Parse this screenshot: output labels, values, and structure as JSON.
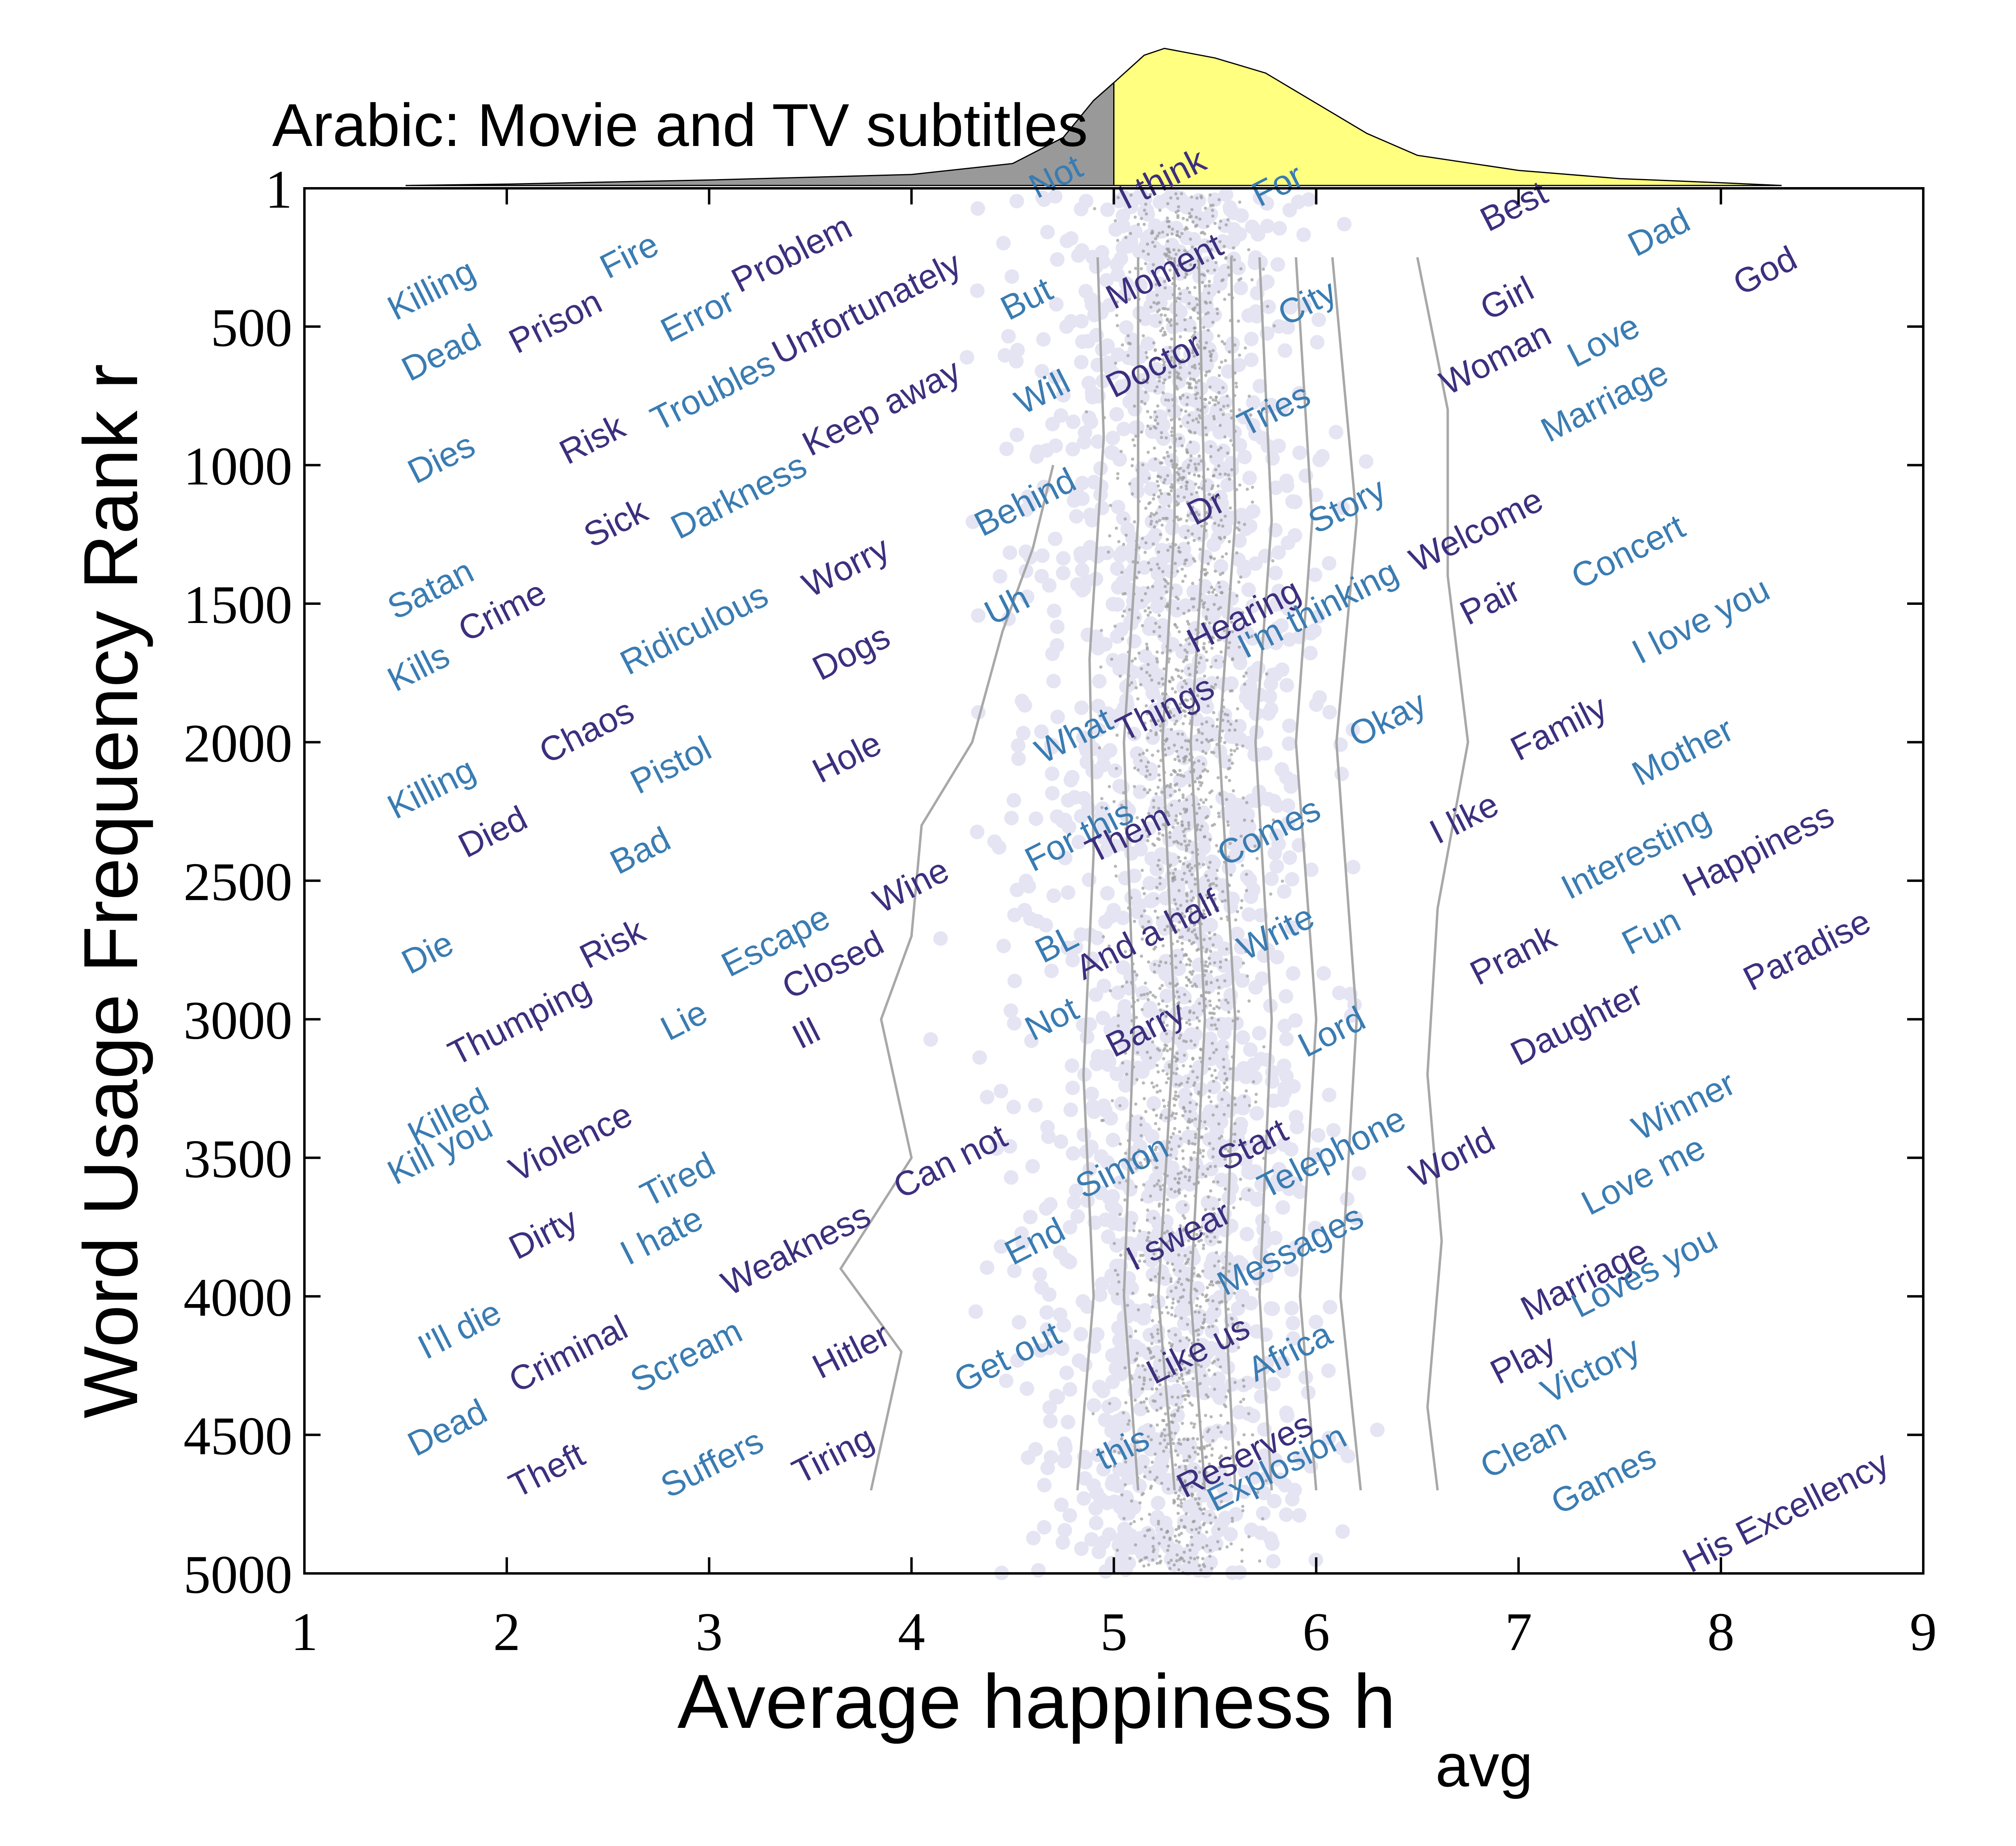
{
  "chart_data": {
    "type": "scatter",
    "title": "Arabic: Movie and TV subtitles",
    "xlabel": "Average happiness h",
    "xlabel_subscript": "avg",
    "ylabel": "Word Usage Frequency Rank r",
    "xlim": [
      1,
      9
    ],
    "ylim": [
      1,
      5000
    ],
    "y_inverted": true,
    "xticks": [
      1,
      2,
      3,
      4,
      5,
      6,
      7,
      8,
      9
    ],
    "yticks": [
      1,
      500,
      1000,
      1500,
      2000,
      2500,
      3000,
      3500,
      4000,
      4500,
      5000
    ],
    "colors": {
      "words_dark": "#3d2f7e",
      "words_light": "#3a7cb2",
      "points": "#e4e4f3",
      "point_core": "#9a9a9a",
      "contours": "#a8a8a8",
      "dist_below": "#999999",
      "dist_above": "#ffff80"
    },
    "words": [
      {
        "text": "Not",
        "x": 4.62,
        "y": 40,
        "tone": "light"
      },
      {
        "text": "I think",
        "x": 5.06,
        "y": 80,
        "tone": "dark"
      },
      {
        "text": "For",
        "x": 5.72,
        "y": 70,
        "tone": "light"
      },
      {
        "text": "Best",
        "x": 6.85,
        "y": 160,
        "tone": "dark"
      },
      {
        "text": "Dad",
        "x": 7.58,
        "y": 250,
        "tone": "light"
      },
      {
        "text": "God",
        "x": 8.1,
        "y": 390,
        "tone": "dark"
      },
      {
        "text": "Killing",
        "x": 1.45,
        "y": 480,
        "tone": "light"
      },
      {
        "text": "Fire",
        "x": 2.5,
        "y": 330,
        "tone": "light"
      },
      {
        "text": "Problem",
        "x": 3.15,
        "y": 380,
        "tone": "dark"
      },
      {
        "text": "Error",
        "x": 2.8,
        "y": 560,
        "tone": "light"
      },
      {
        "text": "Prison",
        "x": 2.05,
        "y": 600,
        "tone": "dark"
      },
      {
        "text": "Dead",
        "x": 1.52,
        "y": 700,
        "tone": "light"
      },
      {
        "text": "But",
        "x": 4.48,
        "y": 480,
        "tone": "light"
      },
      {
        "text": "Moment",
        "x": 5.0,
        "y": 440,
        "tone": "dark"
      },
      {
        "text": "City",
        "x": 5.85,
        "y": 500,
        "tone": "light"
      },
      {
        "text": "Girl",
        "x": 6.85,
        "y": 480,
        "tone": "dark"
      },
      {
        "text": "Unfortunately",
        "x": 3.35,
        "y": 640,
        "tone": "dark"
      },
      {
        "text": "Keep away",
        "x": 3.5,
        "y": 970,
        "tone": "dark"
      },
      {
        "text": "Will",
        "x": 4.55,
        "y": 820,
        "tone": "light"
      },
      {
        "text": "Doctor",
        "x": 5.0,
        "y": 760,
        "tone": "dark"
      },
      {
        "text": "Tries",
        "x": 5.65,
        "y": 900,
        "tone": "light"
      },
      {
        "text": "Woman",
        "x": 6.65,
        "y": 750,
        "tone": "dark"
      },
      {
        "text": "Love",
        "x": 7.28,
        "y": 650,
        "tone": "light"
      },
      {
        "text": "Marriage",
        "x": 7.15,
        "y": 920,
        "tone": "light"
      },
      {
        "text": "Troubles",
        "x": 2.75,
        "y": 880,
        "tone": "light"
      },
      {
        "text": "Risk",
        "x": 2.3,
        "y": 1000,
        "tone": "dark"
      },
      {
        "text": "Dies",
        "x": 1.55,
        "y": 1070,
        "tone": "light"
      },
      {
        "text": "Darkness",
        "x": 2.85,
        "y": 1270,
        "tone": "light"
      },
      {
        "text": "Sick",
        "x": 2.42,
        "y": 1300,
        "tone": "dark"
      },
      {
        "text": "Behind",
        "x": 4.35,
        "y": 1260,
        "tone": "light"
      },
      {
        "text": "Dr",
        "x": 5.4,
        "y": 1220,
        "tone": "dark"
      },
      {
        "text": "Story",
        "x": 6.0,
        "y": 1250,
        "tone": "light"
      },
      {
        "text": "Welcome",
        "x": 6.5,
        "y": 1390,
        "tone": "dark"
      },
      {
        "text": "Concert",
        "x": 7.3,
        "y": 1450,
        "tone": "light"
      },
      {
        "text": "Worry",
        "x": 3.5,
        "y": 1480,
        "tone": "dark"
      },
      {
        "text": "Satan",
        "x": 1.45,
        "y": 1560,
        "tone": "light"
      },
      {
        "text": "Crime",
        "x": 1.8,
        "y": 1640,
        "tone": "dark"
      },
      {
        "text": "Kills",
        "x": 1.45,
        "y": 1820,
        "tone": "light"
      },
      {
        "text": "Ridiculous",
        "x": 2.6,
        "y": 1760,
        "tone": "light"
      },
      {
        "text": "Uh",
        "x": 4.4,
        "y": 1580,
        "tone": "light"
      },
      {
        "text": "Hearing",
        "x": 5.4,
        "y": 1680,
        "tone": "dark"
      },
      {
        "text": "I'm thinking",
        "x": 5.65,
        "y": 1700,
        "tone": "light"
      },
      {
        "text": "Pair",
        "x": 6.75,
        "y": 1580,
        "tone": "dark"
      },
      {
        "text": "I love you",
        "x": 7.6,
        "y": 1720,
        "tone": "light"
      },
      {
        "text": "Dogs",
        "x": 3.55,
        "y": 1780,
        "tone": "dark"
      },
      {
        "text": "What",
        "x": 4.65,
        "y": 2080,
        "tone": "light"
      },
      {
        "text": "Things",
        "x": 5.05,
        "y": 2000,
        "tone": "dark"
      },
      {
        "text": "Okay",
        "x": 6.2,
        "y": 2020,
        "tone": "light"
      },
      {
        "text": "Family",
        "x": 7.0,
        "y": 2070,
        "tone": "dark"
      },
      {
        "text": "Killing",
        "x": 1.45,
        "y": 2280,
        "tone": "light"
      },
      {
        "text": "Chaos",
        "x": 2.2,
        "y": 2080,
        "tone": "dark"
      },
      {
        "text": "Pistol",
        "x": 2.65,
        "y": 2190,
        "tone": "light"
      },
      {
        "text": "Hole",
        "x": 3.55,
        "y": 2150,
        "tone": "dark"
      },
      {
        "text": "Mother",
        "x": 7.6,
        "y": 2160,
        "tone": "light"
      },
      {
        "text": "Died",
        "x": 1.8,
        "y": 2420,
        "tone": "dark"
      },
      {
        "text": "For this",
        "x": 4.6,
        "y": 2470,
        "tone": "light"
      },
      {
        "text": "Them",
        "x": 4.9,
        "y": 2440,
        "tone": "dark"
      },
      {
        "text": "Comes",
        "x": 5.55,
        "y": 2450,
        "tone": "light"
      },
      {
        "text": "I like",
        "x": 6.6,
        "y": 2370,
        "tone": "dark"
      },
      {
        "text": "Interesting",
        "x": 7.25,
        "y": 2570,
        "tone": "light"
      },
      {
        "text": "Happiness",
        "x": 7.85,
        "y": 2560,
        "tone": "dark"
      },
      {
        "text": "Bad",
        "x": 2.55,
        "y": 2480,
        "tone": "light"
      },
      {
        "text": "Wine",
        "x": 3.85,
        "y": 2620,
        "tone": "dark"
      },
      {
        "text": "And a half",
        "x": 4.85,
        "y": 2860,
        "tone": "dark"
      },
      {
        "text": "Write",
        "x": 5.65,
        "y": 2790,
        "tone": "light"
      },
      {
        "text": "Fun",
        "x": 7.55,
        "y": 2770,
        "tone": "light"
      },
      {
        "text": "Prank",
        "x": 6.8,
        "y": 2880,
        "tone": "dark"
      },
      {
        "text": "Paradise",
        "x": 8.15,
        "y": 2900,
        "tone": "dark"
      },
      {
        "text": "Die",
        "x": 1.52,
        "y": 2840,
        "tone": "light"
      },
      {
        "text": "Risk",
        "x": 2.4,
        "y": 2820,
        "tone": "dark"
      },
      {
        "text": "Escape",
        "x": 3.1,
        "y": 2850,
        "tone": "light"
      },
      {
        "text": "Closed",
        "x": 3.4,
        "y": 2930,
        "tone": "dark"
      },
      {
        "text": "BL",
        "x": 4.65,
        "y": 2800,
        "tone": "light"
      },
      {
        "text": "Thumping",
        "x": 1.75,
        "y": 3170,
        "tone": "dark"
      },
      {
        "text": "Lie",
        "x": 2.8,
        "y": 3080,
        "tone": "light"
      },
      {
        "text": "Ill",
        "x": 3.45,
        "y": 3110,
        "tone": "dark"
      },
      {
        "text": "Not",
        "x": 4.6,
        "y": 3080,
        "tone": "light"
      },
      {
        "text": "Barry",
        "x": 5.0,
        "y": 3140,
        "tone": "dark"
      },
      {
        "text": "Lord",
        "x": 5.95,
        "y": 3140,
        "tone": "light"
      },
      {
        "text": "Daughter",
        "x": 7.0,
        "y": 3170,
        "tone": "dark"
      },
      {
        "text": "Killed",
        "x": 1.55,
        "y": 3460,
        "tone": "light"
      },
      {
        "text": "Kill you",
        "x": 1.45,
        "y": 3600,
        "tone": "light"
      },
      {
        "text": "Violence",
        "x": 2.05,
        "y": 3590,
        "tone": "dark"
      },
      {
        "text": "Winner",
        "x": 7.6,
        "y": 3440,
        "tone": "light"
      },
      {
        "text": "Can not",
        "x": 3.95,
        "y": 3650,
        "tone": "dark"
      },
      {
        "text": "Simon",
        "x": 4.85,
        "y": 3650,
        "tone": "light"
      },
      {
        "text": "Start",
        "x": 5.55,
        "y": 3550,
        "tone": "dark"
      },
      {
        "text": "Telephone",
        "x": 5.75,
        "y": 3650,
        "tone": "light"
      },
      {
        "text": "World",
        "x": 6.5,
        "y": 3610,
        "tone": "dark"
      },
      {
        "text": "Love me",
        "x": 7.35,
        "y": 3710,
        "tone": "light"
      },
      {
        "text": "Tired",
        "x": 2.7,
        "y": 3680,
        "tone": "light"
      },
      {
        "text": "Dirty",
        "x": 2.05,
        "y": 3870,
        "tone": "dark"
      },
      {
        "text": "I hate",
        "x": 2.6,
        "y": 3890,
        "tone": "light"
      },
      {
        "text": "Weakness",
        "x": 3.1,
        "y": 4000,
        "tone": "dark"
      },
      {
        "text": "End",
        "x": 4.5,
        "y": 3890,
        "tone": "light"
      },
      {
        "text": "I swear",
        "x": 5.1,
        "y": 3910,
        "tone": "dark"
      },
      {
        "text": "Messages",
        "x": 5.55,
        "y": 4000,
        "tone": "light"
      },
      {
        "text": "Marriage",
        "x": 7.05,
        "y": 4090,
        "tone": "dark"
      },
      {
        "text": "Loves you",
        "x": 7.3,
        "y": 4080,
        "tone": "light"
      },
      {
        "text": "I'll die",
        "x": 1.6,
        "y": 4230,
        "tone": "light"
      },
      {
        "text": "Criminal",
        "x": 2.05,
        "y": 4350,
        "tone": "dark"
      },
      {
        "text": "Scream",
        "x": 2.65,
        "y": 4350,
        "tone": "light"
      },
      {
        "text": "Hitler",
        "x": 3.55,
        "y": 4300,
        "tone": "dark"
      },
      {
        "text": "Get out",
        "x": 4.25,
        "y": 4350,
        "tone": "light"
      },
      {
        "text": "Like us",
        "x": 5.2,
        "y": 4320,
        "tone": "dark"
      },
      {
        "text": "Africa",
        "x": 5.7,
        "y": 4310,
        "tone": "light"
      },
      {
        "text": "Play",
        "x": 6.9,
        "y": 4320,
        "tone": "dark"
      },
      {
        "text": "Victory",
        "x": 7.15,
        "y": 4390,
        "tone": "light"
      },
      {
        "text": "Dead",
        "x": 1.55,
        "y": 4580,
        "tone": "light"
      },
      {
        "text": "Theft",
        "x": 2.05,
        "y": 4730,
        "tone": "dark"
      },
      {
        "text": "Suffers",
        "x": 2.8,
        "y": 4730,
        "tone": "light"
      },
      {
        "text": "Tiring",
        "x": 3.45,
        "y": 4680,
        "tone": "dark"
      },
      {
        "text": "this",
        "x": 4.95,
        "y": 4630,
        "tone": "light"
      },
      {
        "text": "Reserves",
        "x": 5.35,
        "y": 4730,
        "tone": "dark"
      },
      {
        "text": "Explosion",
        "x": 5.5,
        "y": 4780,
        "tone": "light"
      },
      {
        "text": "Clean",
        "x": 6.85,
        "y": 4660,
        "tone": "light"
      },
      {
        "text": "Games",
        "x": 7.2,
        "y": 4790,
        "tone": "light"
      },
      {
        "text": "His Excellency",
        "x": 7.85,
        "y": 5000,
        "tone": "dark"
      }
    ],
    "contours": [
      [
        [
          4.7,
          1000
        ],
        [
          4.6,
          1300
        ],
        [
          4.45,
          1600
        ],
        [
          4.3,
          2000
        ],
        [
          4.05,
          2300
        ],
        [
          4.0,
          2700
        ],
        [
          3.85,
          3000
        ],
        [
          4.0,
          3500
        ],
        [
          3.65,
          3900
        ],
        [
          3.95,
          4200
        ],
        [
          3.8,
          4700
        ]
      ],
      [
        [
          4.92,
          250
        ],
        [
          4.95,
          900
        ],
        [
          4.88,
          1700
        ],
        [
          4.9,
          2400
        ],
        [
          4.85,
          3200
        ],
        [
          4.9,
          4000
        ],
        [
          4.82,
          4700
        ]
      ],
      [
        [
          5.12,
          250
        ],
        [
          5.12,
          1200
        ],
        [
          5.05,
          2000
        ],
        [
          5.1,
          3000
        ],
        [
          5.05,
          4000
        ],
        [
          5.12,
          4700
        ]
      ],
      [
        [
          5.3,
          250
        ],
        [
          5.3,
          1200
        ],
        [
          5.24,
          2000
        ],
        [
          5.3,
          3000
        ],
        [
          5.22,
          4000
        ],
        [
          5.3,
          4700
        ]
      ],
      [
        [
          5.42,
          250
        ],
        [
          5.45,
          1200
        ],
        [
          5.38,
          2000
        ],
        [
          5.45,
          3000
        ],
        [
          5.38,
          4000
        ],
        [
          5.45,
          4700
        ]
      ],
      [
        [
          5.58,
          250
        ],
        [
          5.6,
          1200
        ],
        [
          5.52,
          2000
        ],
        [
          5.6,
          3000
        ],
        [
          5.55,
          4000
        ],
        [
          5.6,
          4700
        ]
      ],
      [
        [
          5.72,
          250
        ],
        [
          5.78,
          1200
        ],
        [
          5.7,
          2000
        ],
        [
          5.78,
          3000
        ],
        [
          5.72,
          4000
        ],
        [
          5.78,
          4700
        ]
      ],
      [
        [
          5.9,
          250
        ],
        [
          5.98,
          1200
        ],
        [
          5.9,
          2000
        ],
        [
          6.0,
          3000
        ],
        [
          5.92,
          4000
        ],
        [
          6.0,
          4700
        ]
      ],
      [
        [
          6.08,
          250
        ],
        [
          6.2,
          1200
        ],
        [
          6.1,
          2000
        ],
        [
          6.2,
          3000
        ],
        [
          6.12,
          4000
        ],
        [
          6.22,
          4700
        ]
      ],
      [
        [
          6.5,
          250
        ],
        [
          6.65,
          800
        ],
        [
          6.65,
          1400
        ],
        [
          6.75,
          2000
        ],
        [
          6.6,
          2600
        ],
        [
          6.55,
          3200
        ],
        [
          6.62,
          3800
        ],
        [
          6.55,
          4400
        ],
        [
          6.6,
          4700
        ]
      ]
    ],
    "distribution": {
      "x": [
        1.5,
        2.0,
        3.0,
        4.0,
        4.5,
        4.75,
        4.9,
        5.0,
        5.15,
        5.25,
        5.5,
        5.75,
        6.0,
        6.25,
        6.5,
        7.0,
        7.5,
        8.0,
        8.3
      ],
      "density": [
        0.0,
        0.01,
        0.04,
        0.08,
        0.16,
        0.35,
        0.62,
        0.75,
        0.95,
        1.0,
        0.93,
        0.82,
        0.6,
        0.38,
        0.22,
        0.11,
        0.05,
        0.02,
        0.0
      ]
    }
  }
}
